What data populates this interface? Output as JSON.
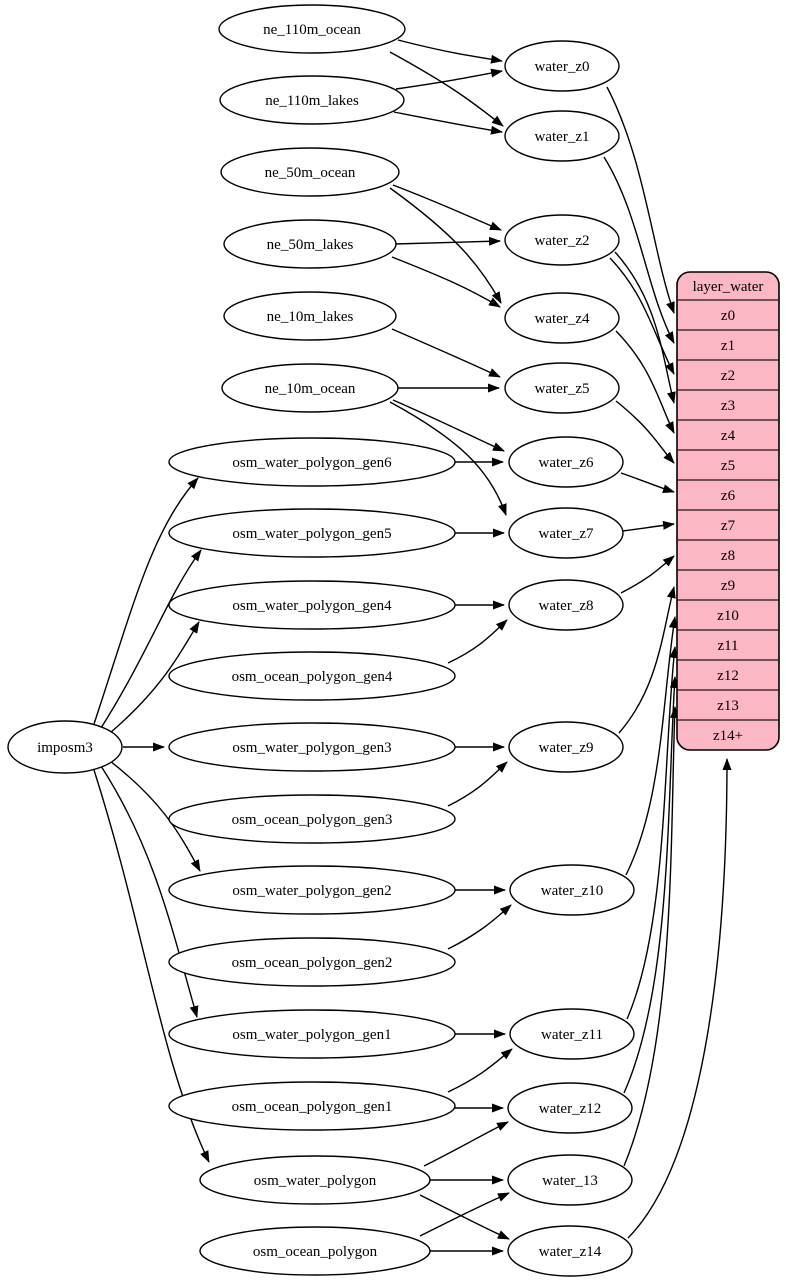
{
  "diagram": {
    "type": "etl-flow-graph",
    "colors": {
      "background": "#ffffff",
      "edge": "#000000",
      "node_fill": "#ffffff",
      "node_stroke": "#000000",
      "table_fill": "#fbb7c3",
      "text": "#000000"
    },
    "nodes": [
      {
        "id": "imposm3",
        "label": "imposm3"
      },
      {
        "id": "ne_110m_ocean",
        "label": "ne_110m_ocean"
      },
      {
        "id": "ne_110m_lakes",
        "label": "ne_110m_lakes"
      },
      {
        "id": "ne_50m_ocean",
        "label": "ne_50m_ocean"
      },
      {
        "id": "ne_50m_lakes",
        "label": "ne_50m_lakes"
      },
      {
        "id": "ne_10m_lakes",
        "label": "ne_10m_lakes"
      },
      {
        "id": "ne_10m_ocean",
        "label": "ne_10m_ocean"
      },
      {
        "id": "osm_water_polygon_gen6",
        "label": "osm_water_polygon_gen6"
      },
      {
        "id": "osm_water_polygon_gen5",
        "label": "osm_water_polygon_gen5"
      },
      {
        "id": "osm_water_polygon_gen4",
        "label": "osm_water_polygon_gen4"
      },
      {
        "id": "osm_ocean_polygon_gen4",
        "label": "osm_ocean_polygon_gen4"
      },
      {
        "id": "osm_water_polygon_gen3",
        "label": "osm_water_polygon_gen3"
      },
      {
        "id": "osm_ocean_polygon_gen3",
        "label": "osm_ocean_polygon_gen3"
      },
      {
        "id": "osm_water_polygon_gen2",
        "label": "osm_water_polygon_gen2"
      },
      {
        "id": "osm_ocean_polygon_gen2",
        "label": "osm_ocean_polygon_gen2"
      },
      {
        "id": "osm_water_polygon_gen1",
        "label": "osm_water_polygon_gen1"
      },
      {
        "id": "osm_ocean_polygon_gen1",
        "label": "osm_ocean_polygon_gen1"
      },
      {
        "id": "osm_water_polygon",
        "label": "osm_water_polygon"
      },
      {
        "id": "osm_ocean_polygon",
        "label": "osm_ocean_polygon"
      },
      {
        "id": "water_z0",
        "label": "water_z0"
      },
      {
        "id": "water_z1",
        "label": "water_z1"
      },
      {
        "id": "water_z2",
        "label": "water_z2"
      },
      {
        "id": "water_z4",
        "label": "water_z4"
      },
      {
        "id": "water_z5",
        "label": "water_z5"
      },
      {
        "id": "water_z6",
        "label": "water_z6"
      },
      {
        "id": "water_z7",
        "label": "water_z7"
      },
      {
        "id": "water_z8",
        "label": "water_z8"
      },
      {
        "id": "water_z9",
        "label": "water_z9"
      },
      {
        "id": "water_z10",
        "label": "water_z10"
      },
      {
        "id": "water_z11",
        "label": "water_z11"
      },
      {
        "id": "water_z12",
        "label": "water_z12"
      },
      {
        "id": "water_z13",
        "label": "water_13"
      },
      {
        "id": "water_z14",
        "label": "water_z14"
      }
    ],
    "table": {
      "id": "layer_water",
      "title": "layer_water",
      "rows": [
        "z0",
        "z1",
        "z2",
        "z3",
        "z4",
        "z5",
        "z6",
        "z7",
        "z8",
        "z9",
        "z10",
        "z11",
        "z12",
        "z13",
        "z14+"
      ]
    },
    "edges": [
      {
        "from": "ne_110m_ocean",
        "to": "water_z0"
      },
      {
        "from": "ne_110m_ocean",
        "to": "water_z1"
      },
      {
        "from": "ne_110m_lakes",
        "to": "water_z0"
      },
      {
        "from": "ne_110m_lakes",
        "to": "water_z1"
      },
      {
        "from": "ne_50m_ocean",
        "to": "water_z2"
      },
      {
        "from": "ne_50m_ocean",
        "to": "water_z4"
      },
      {
        "from": "ne_50m_lakes",
        "to": "water_z2"
      },
      {
        "from": "ne_50m_lakes",
        "to": "water_z4"
      },
      {
        "from": "ne_10m_lakes",
        "to": "water_z5"
      },
      {
        "from": "ne_10m_ocean",
        "to": "water_z5"
      },
      {
        "from": "ne_10m_ocean",
        "to": "water_z6"
      },
      {
        "from": "ne_10m_ocean",
        "to": "water_z7"
      },
      {
        "from": "osm_water_polygon_gen6",
        "to": "water_z6"
      },
      {
        "from": "osm_water_polygon_gen5",
        "to": "water_z7"
      },
      {
        "from": "osm_water_polygon_gen4",
        "to": "water_z8"
      },
      {
        "from": "osm_ocean_polygon_gen4",
        "to": "water_z8"
      },
      {
        "from": "osm_water_polygon_gen3",
        "to": "water_z9"
      },
      {
        "from": "osm_ocean_polygon_gen3",
        "to": "water_z9"
      },
      {
        "from": "osm_water_polygon_gen2",
        "to": "water_z10"
      },
      {
        "from": "osm_ocean_polygon_gen2",
        "to": "water_z10"
      },
      {
        "from": "osm_water_polygon_gen1",
        "to": "water_z11"
      },
      {
        "from": "osm_ocean_polygon_gen1",
        "to": "water_z11"
      },
      {
        "from": "osm_ocean_polygon_gen1",
        "to": "water_z12"
      },
      {
        "from": "osm_water_polygon",
        "to": "water_z12"
      },
      {
        "from": "osm_water_polygon",
        "to": "water_z13"
      },
      {
        "from": "osm_water_polygon",
        "to": "water_z14"
      },
      {
        "from": "osm_ocean_polygon",
        "to": "water_z13"
      },
      {
        "from": "osm_ocean_polygon",
        "to": "water_z14"
      },
      {
        "from": "imposm3",
        "to": "osm_water_polygon_gen6"
      },
      {
        "from": "imposm3",
        "to": "osm_water_polygon_gen5"
      },
      {
        "from": "imposm3",
        "to": "osm_water_polygon_gen4"
      },
      {
        "from": "imposm3",
        "to": "osm_water_polygon_gen3"
      },
      {
        "from": "imposm3",
        "to": "osm_water_polygon_gen2"
      },
      {
        "from": "imposm3",
        "to": "osm_water_polygon_gen1"
      },
      {
        "from": "imposm3",
        "to": "osm_water_polygon"
      },
      {
        "from": "water_z0",
        "to": "layer_water",
        "port": "z0"
      },
      {
        "from": "water_z1",
        "to": "layer_water",
        "port": "z1"
      },
      {
        "from": "water_z2",
        "to": "layer_water",
        "port": "z2"
      },
      {
        "from": "water_z2",
        "to": "layer_water",
        "port": "z3"
      },
      {
        "from": "water_z4",
        "to": "layer_water",
        "port": "z4"
      },
      {
        "from": "water_z5",
        "to": "layer_water",
        "port": "z5"
      },
      {
        "from": "water_z6",
        "to": "layer_water",
        "port": "z6"
      },
      {
        "from": "water_z7",
        "to": "layer_water",
        "port": "z7"
      },
      {
        "from": "water_z8",
        "to": "layer_water",
        "port": "z8"
      },
      {
        "from": "water_z9",
        "to": "layer_water",
        "port": "z9"
      },
      {
        "from": "water_z10",
        "to": "layer_water",
        "port": "z10"
      },
      {
        "from": "water_z11",
        "to": "layer_water",
        "port": "z11"
      },
      {
        "from": "water_z12",
        "to": "layer_water",
        "port": "z12"
      },
      {
        "from": "water_z13",
        "to": "layer_water",
        "port": "z13"
      },
      {
        "from": "water_z14",
        "to": "layer_water",
        "port": "z14+"
      }
    ]
  }
}
